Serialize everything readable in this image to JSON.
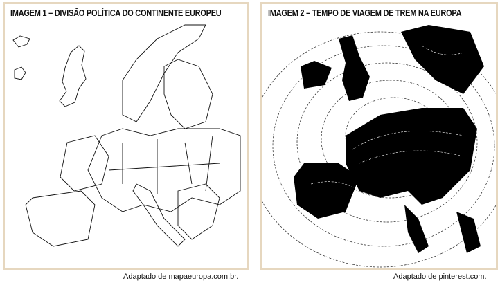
{
  "panels": [
    {
      "title": "IMAGEM 1 –  DIVISÃO POLÍTICA DO CONTINENTE EUROPEU",
      "source": "Adaptado de mapaeuropa.com.br."
    },
    {
      "title": "IMAGEM 2 –  TEMPO DE VIAGEM DE TREM NA EUROPA",
      "source": "Adaptado de pinterest.com."
    }
  ]
}
